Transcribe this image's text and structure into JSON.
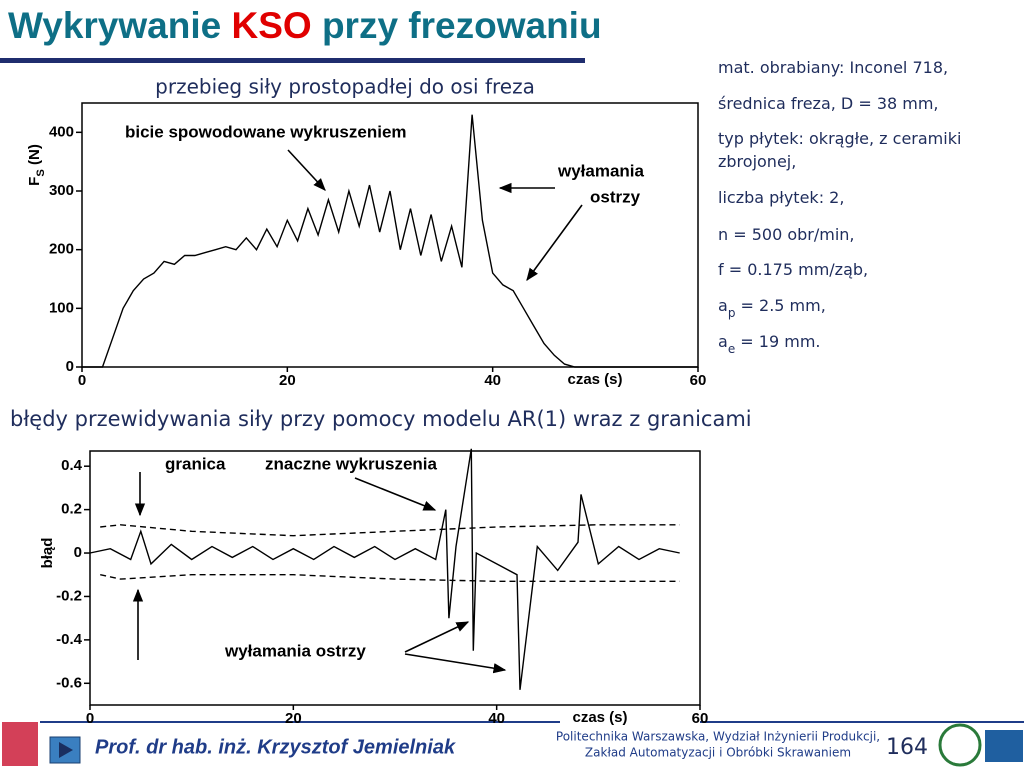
{
  "title": {
    "part1": "Wykrywanie ",
    "highlight": "KSO",
    "part2": " przy frezowaniu"
  },
  "params": [
    {
      "text": "mat. obrabiany: Inconel 718,"
    },
    {
      "text": "średnica freza, D = 38 mm,"
    },
    {
      "text": "typ płytek: okrągłe, z ceramiki"
    },
    {
      "text": "zbrojonej,"
    },
    {
      "text": "liczba płytek: 2,"
    },
    {
      "text": "n = 500 obr/min,"
    },
    {
      "text": "f = 0.175 mm/ząb,"
    },
    {
      "text": "a",
      "sub": "p",
      "rest": " = 2.5 mm,"
    },
    {
      "text": "a",
      "sub": "e",
      "rest": " = 19 mm."
    }
  ],
  "chart_data": [
    {
      "type": "line",
      "title": "przebieg siły prostopadłej do osi freza",
      "x_label": "czas (s)",
      "y_label": {
        "main": "F",
        "sub": "S",
        "rest": " (N)"
      },
      "annotations": [
        "bicie spowodowane wykruszeniem",
        "wyłamania",
        "ostrzy"
      ],
      "xlim": [
        0,
        60
      ],
      "xticks": [
        0,
        20,
        40,
        60
      ],
      "ylim": [
        0,
        450
      ],
      "yticks": [
        0,
        100,
        200,
        300,
        400
      ],
      "series": [
        {
          "color": "#000000",
          "x": [
            0,
            1,
            2,
            3,
            4,
            5,
            6,
            7,
            8,
            9,
            10,
            11,
            12,
            13,
            14,
            15,
            16,
            17,
            18,
            19,
            20,
            21,
            22,
            23,
            24,
            25,
            26,
            27,
            28,
            29,
            30,
            31,
            32,
            33,
            34,
            35,
            36,
            37,
            38,
            39,
            40,
            41,
            42,
            43,
            44,
            45,
            46,
            47,
            48,
            49,
            50,
            51,
            52,
            53,
            54,
            55,
            56,
            57,
            58,
            59,
            60
          ],
          "values": [
            0,
            0,
            0,
            50,
            100,
            130,
            150,
            160,
            180,
            175,
            190,
            190,
            195,
            200,
            205,
            200,
            220,
            200,
            235,
            205,
            250,
            215,
            270,
            225,
            285,
            230,
            300,
            240,
            310,
            230,
            300,
            200,
            270,
            190,
            260,
            180,
            240,
            170,
            430,
            250,
            160,
            140,
            130,
            100,
            70,
            40,
            20,
            5,
            0,
            0,
            0,
            0,
            0,
            0,
            0,
            0,
            0,
            0,
            0,
            0,
            0
          ]
        }
      ]
    },
    {
      "type": "line",
      "title": "błędy przewidywania siły przy pomocy modelu AR(1) wraz z granicami",
      "x_label": "czas (s)",
      "y_label": {
        "main": "błąd"
      },
      "annotations": [
        "granica",
        "znaczne wykruszenia",
        "wyłamania ostrzy"
      ],
      "xlim": [
        0,
        60
      ],
      "xticks": [
        0,
        20,
        40,
        60
      ],
      "ylim": [
        -0.7,
        0.47
      ],
      "yticks": [
        0.4,
        0.2,
        0,
        -0.2,
        -0.4,
        -0.6
      ],
      "series": [
        {
          "color": "#000000",
          "x": [
            0,
            2,
            4,
            5,
            6,
            8,
            10,
            12,
            14,
            16,
            18,
            20,
            22,
            24,
            26,
            28,
            30,
            32,
            34,
            35,
            35.3,
            36,
            37.5,
            37.7,
            38,
            40,
            42,
            42.3,
            44,
            46,
            48,
            48.3,
            50,
            52,
            54,
            56,
            58
          ],
          "values": [
            0,
            0.02,
            -0.03,
            0.1,
            -0.05,
            0.04,
            -0.03,
            0.03,
            -0.02,
            0.03,
            -0.03,
            0.02,
            -0.03,
            0.03,
            -0.02,
            0.03,
            -0.03,
            0.02,
            -0.03,
            0.2,
            -0.3,
            0.03,
            0.48,
            -0.45,
            0,
            -0.05,
            -0.1,
            -0.63,
            0.03,
            -0.08,
            0.05,
            0.27,
            -0.05,
            0.03,
            -0.03,
            0.02,
            0
          ]
        },
        {
          "color": "#000000",
          "dashed": true,
          "x": [
            1,
            3,
            10,
            20,
            30,
            40,
            50,
            58
          ],
          "values": [
            0.12,
            0.13,
            0.1,
            0.08,
            0.1,
            0.12,
            0.13,
            0.13
          ]
        },
        {
          "color": "#000000",
          "dashed": true,
          "x": [
            1,
            3,
            10,
            20,
            30,
            40,
            50,
            58
          ],
          "values": [
            -0.1,
            -0.12,
            -0.1,
            -0.1,
            -0.12,
            -0.13,
            -0.13,
            -0.13
          ]
        }
      ]
    }
  ],
  "footer": {
    "author": "Prof. dr hab. inż. Krzysztof Jemielniak",
    "institution": "Politechnika Warszawska, Wydział Inżynierii Produkcji,",
    "department": "Zakład Automatyzacji i Obróbki Skrawaniem",
    "page": "164"
  }
}
